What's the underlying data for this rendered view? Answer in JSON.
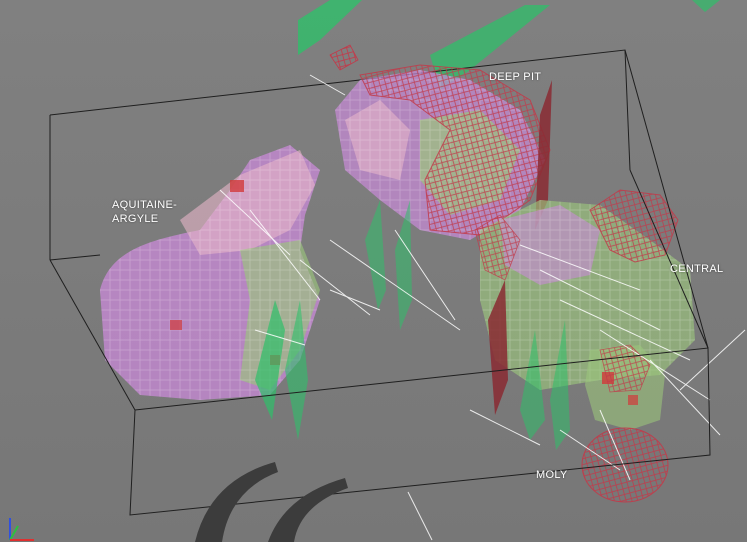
{
  "viewer": {
    "background_color": "#7c7c7c",
    "bounding_box_color": "#1f1f1f"
  },
  "labels": {
    "deep_pit": "DEEP PIT",
    "aquitaine_argyle": "AQUITAINE-\nARGYLE",
    "central": "CENTRAL",
    "moly": "MOLY"
  },
  "legend_colors": {
    "fault_surface": "#2fbf6a",
    "wireframe_shell": "#c23a4a",
    "block_model_high": "#c98ad8",
    "block_model_mid": "#9bc47c",
    "block_model_low": "#e6b6c8",
    "drillhole_trace": "#ffffff"
  },
  "axis_triad": {
    "icons": [
      "x-axis-icon",
      "y-axis-icon",
      "z-axis-icon"
    ],
    "colors": [
      "#e03030",
      "#2cc040",
      "#3050e0"
    ]
  }
}
